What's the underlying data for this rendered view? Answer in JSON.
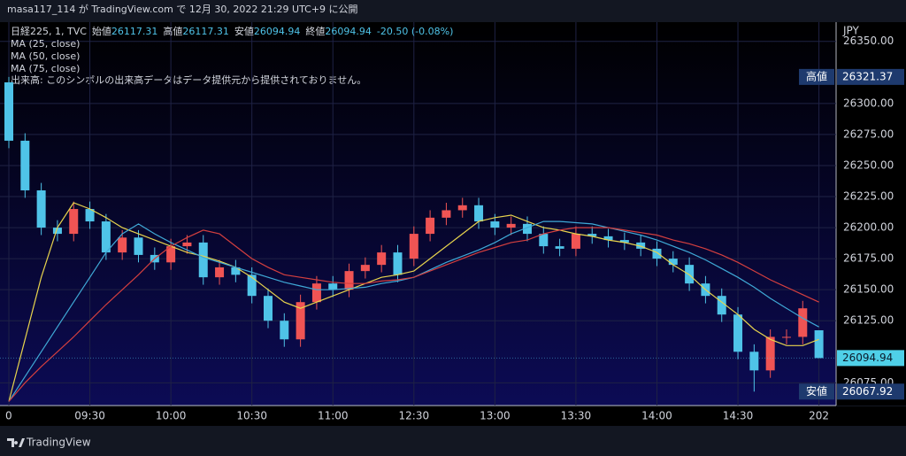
{
  "header": {
    "published": "masa117_114 が TradingView.com で 12月 30, 2022 21:29 UTC+9 に公開",
    "footer": "TradingView"
  },
  "chart_data": {
    "type": "candlestick",
    "legend": {
      "symbol": "日経225, 1, TVC",
      "open_label": "始値",
      "open": 26117.31,
      "high_label": "高値",
      "high": 26117.31,
      "low_label": "安値",
      "low": 26094.94,
      "close_label": "終値",
      "close": 26094.94,
      "change": "-20.50 (-0.08%)"
    },
    "volume_note": "出来高: このシンボルの出来高データはデータ提供元から提供されておりません。",
    "currency": "JPY",
    "x": [
      "09:00",
      "09:06",
      "09:12",
      "09:18",
      "09:24",
      "09:30",
      "09:36",
      "09:42",
      "09:48",
      "09:54",
      "10:00",
      "10:06",
      "10:12",
      "10:18",
      "10:24",
      "10:30",
      "10:36",
      "10:42",
      "10:48",
      "10:54",
      "11:00",
      "11:06",
      "11:12",
      "11:18",
      "11:24",
      "12:30",
      "12:36",
      "12:42",
      "12:48",
      "12:54",
      "13:00",
      "13:06",
      "13:12",
      "13:18",
      "13:24",
      "13:30",
      "13:36",
      "13:42",
      "13:48",
      "13:54",
      "14:00",
      "14:06",
      "14:12",
      "14:18",
      "14:24",
      "14:30",
      "14:36",
      "14:42",
      "14:48",
      "14:54",
      "15:00"
    ],
    "open": [
      26317,
      26270,
      26230,
      26200,
      26195,
      26215,
      26205,
      26180,
      26192,
      26178,
      26172,
      26185,
      26188,
      26160,
      26168,
      26162,
      26145,
      26125,
      26110,
      26140,
      26155,
      26150,
      26165,
      26170,
      26180,
      26175,
      26195,
      26208,
      26214,
      26218,
      26205,
      26200,
      26203,
      26195,
      26185,
      26183,
      26195,
      26193,
      26190,
      26188,
      26183,
      26175,
      26170,
      26155,
      26145,
      26130,
      26100,
      26085,
      26112,
      26112,
      26117.31
    ],
    "high": [
      26321.37,
      26276,
      26236,
      26206,
      26221,
      26221,
      26211,
      26198,
      26198,
      26184,
      26191,
      26194,
      26194,
      26174,
      26174,
      26168,
      26151,
      26131,
      26146,
      26161,
      26161,
      26171,
      26176,
      26186,
      26186,
      26201,
      26214,
      26220,
      26224,
      26224,
      26211,
      26209,
      26209,
      26201,
      26191,
      26201,
      26201,
      26199,
      26196,
      26194,
      26189,
      26181,
      26176,
      26161,
      26151,
      26136,
      26106,
      26118,
      26118,
      26141,
      26117.31
    ],
    "low": [
      26264,
      26224,
      26194,
      26189,
      26189,
      26199,
      26174,
      26174,
      26172,
      26166,
      26166,
      26179,
      26154,
      26154,
      26156,
      26139,
      26119,
      26104,
      26104,
      26134,
      26144,
      26144,
      26159,
      26164,
      26156,
      26169,
      26189,
      26202,
      26208,
      26199,
      26194,
      26194,
      26189,
      26179,
      26177,
      26177,
      26187,
      26184,
      26182,
      26177,
      26169,
      26164,
      26149,
      26139,
      26124,
      26094,
      26067.92,
      26079,
      26106,
      26106,
      26094.94
    ],
    "close": [
      26270,
      26230,
      26200,
      26195,
      26215,
      26205,
      26180,
      26192,
      26178,
      26172,
      26185,
      26188,
      26160,
      26168,
      26162,
      26145,
      26125,
      26110,
      26140,
      26155,
      26150,
      26165,
      26170,
      26180,
      26162,
      26195,
      26208,
      26214,
      26218,
      26205,
      26200,
      26203,
      26195,
      26185,
      26183,
      26195,
      26193,
      26190,
      26188,
      26183,
      26175,
      26170,
      26155,
      26145,
      26130,
      26100,
      26085,
      26112,
      26112,
      26135,
      26094.94
    ],
    "up_color": "#f05454",
    "down_color": "#4fc3e8",
    "series": [
      {
        "name": "MA (25, close)",
        "color": "#e8d44d",
        "values": [
          26060,
          26110,
          26160,
          26200,
          26220,
          26215,
          26208,
          26200,
          26195,
          26190,
          26185,
          26180,
          26177,
          26173,
          26168,
          26160,
          26150,
          26140,
          26135,
          26140,
          26145,
          26150,
          26155,
          26160,
          26162,
          26165,
          26175,
          26185,
          26195,
          26205,
          26208,
          26210,
          26205,
          26200,
          26198,
          26195,
          26193,
          26190,
          26188,
          26185,
          26180,
          26170,
          26162,
          26150,
          26140,
          26130,
          26118,
          26110,
          26105,
          26105,
          26110
        ]
      },
      {
        "name": "MA (50, close)",
        "color": "#3fa9d6",
        "values": [
          26060,
          26080,
          26100,
          26120,
          26140,
          26160,
          26180,
          26195,
          26203,
          26195,
          26188,
          26182,
          26176,
          26172,
          26168,
          26164,
          26160,
          26156,
          26153,
          26150,
          26150,
          26151,
          26152,
          26155,
          26157,
          26160,
          26166,
          26172,
          26177,
          26182,
          26188,
          26195,
          26200,
          26205,
          26205,
          26204,
          26203,
          26200,
          26197,
          26194,
          26190,
          26185,
          26180,
          26174,
          26167,
          26160,
          26152,
          26143,
          26135,
          26127,
          26120
        ]
      },
      {
        "name": "MA (75, close)",
        "color": "#d43f3f",
        "values": [
          26060,
          26075,
          26088,
          26100,
          26112,
          26125,
          26138,
          26150,
          26162,
          26175,
          26185,
          26192,
          26198,
          26195,
          26185,
          26175,
          26168,
          26162,
          26160,
          26158,
          26156,
          26155,
          26155,
          26157,
          26158,
          26160,
          26165,
          26170,
          26175,
          26180,
          26184,
          26188,
          26190,
          26195,
          26198,
          26200,
          26200,
          26200,
          26198,
          26196,
          26194,
          26190,
          26187,
          26183,
          26178,
          26172,
          26165,
          26158,
          26152,
          26146,
          26140
        ]
      }
    ],
    "ylim": [
      26056.7,
      26365.5
    ],
    "yticks": [
      {
        "value": 26350,
        "label": "26350.00"
      },
      {
        "value": 26300,
        "label": "26300.00"
      },
      {
        "value": 26275,
        "label": "26275.00"
      },
      {
        "value": 26250,
        "label": "26250.00"
      },
      {
        "value": 26225,
        "label": "26225.00"
      },
      {
        "value": 26200,
        "label": "26200.00"
      },
      {
        "value": 26175,
        "label": "26175.00"
      },
      {
        "value": 26150,
        "label": "26150.00"
      },
      {
        "value": 26125,
        "label": "26125.00"
      },
      {
        "value": 26075,
        "label": "26075.00"
      }
    ],
    "xticks": [
      {
        "value": "09:00",
        "label": "0"
      },
      "09:30",
      "10:00",
      "10:30",
      "11:00",
      "12:30",
      "13:00",
      "13:30",
      "14:00",
      "14:30",
      {
        "value": "15:00",
        "label": "202"
      }
    ],
    "badges": {
      "high_label": "高値",
      "high": 26321.37,
      "last": 26094.94,
      "low_label": "安値",
      "low": 26067.92
    }
  }
}
